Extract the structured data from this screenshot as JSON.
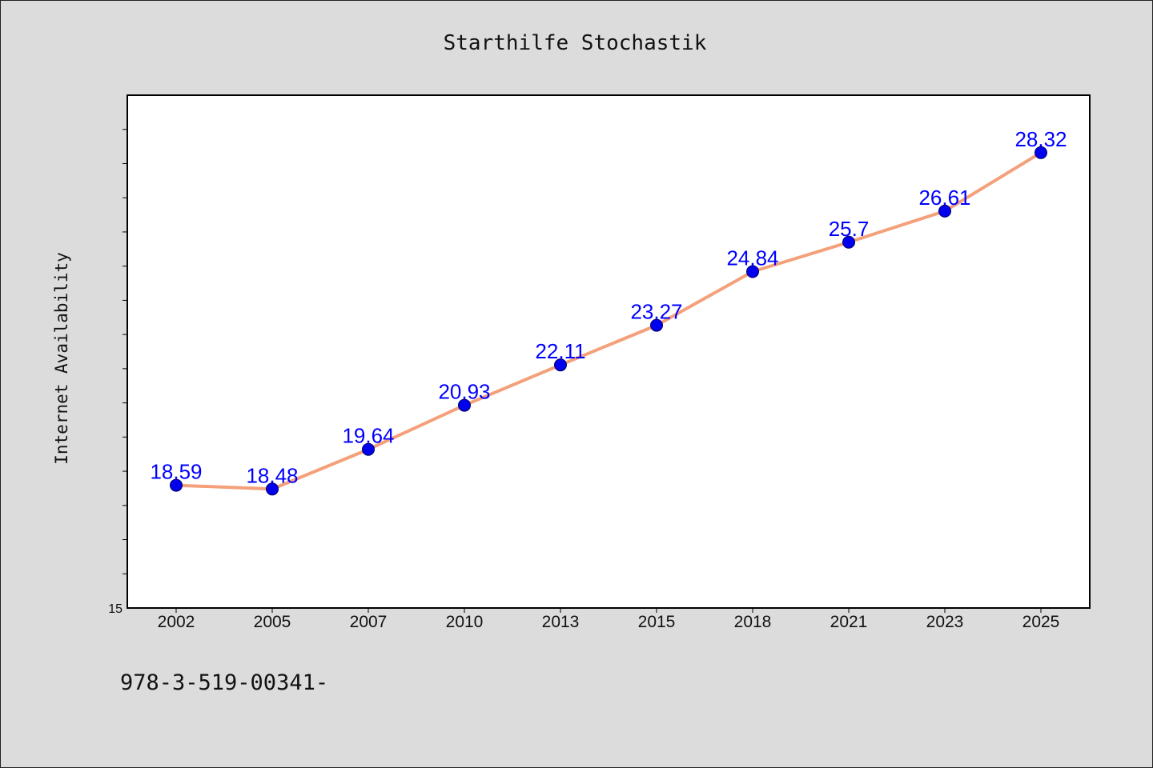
{
  "chart_data": {
    "type": "line",
    "title": "Starthilfe Stochastik",
    "xlabel": "",
    "ylabel": "Internet Availability",
    "categories": [
      "2002",
      "2005",
      "2007",
      "2010",
      "2013",
      "2015",
      "2018",
      "2021",
      "2023",
      "2025"
    ],
    "series": [
      {
        "values": [
          18.59,
          18.48,
          19.64,
          20.93,
          22.11,
          23.27,
          24.84,
          25.7,
          26.61,
          28.32
        ],
        "data_labels": [
          "18.59",
          "18.48",
          "19.64",
          "20.93",
          "22.11",
          "23.27",
          "24.84",
          "25.7",
          "26.61",
          "28.32"
        ]
      }
    ],
    "ylim": [
      15,
      30
    ],
    "yticks_labeled": [
      "15"
    ],
    "grid": false,
    "line_color": "#f4a07a",
    "marker_color": "#0000ee",
    "label_color": "#0000ff",
    "plot_background": "#ffffff",
    "page_background": "#dcdcdc"
  },
  "footer": {
    "text": "978-3-519-00341-"
  }
}
